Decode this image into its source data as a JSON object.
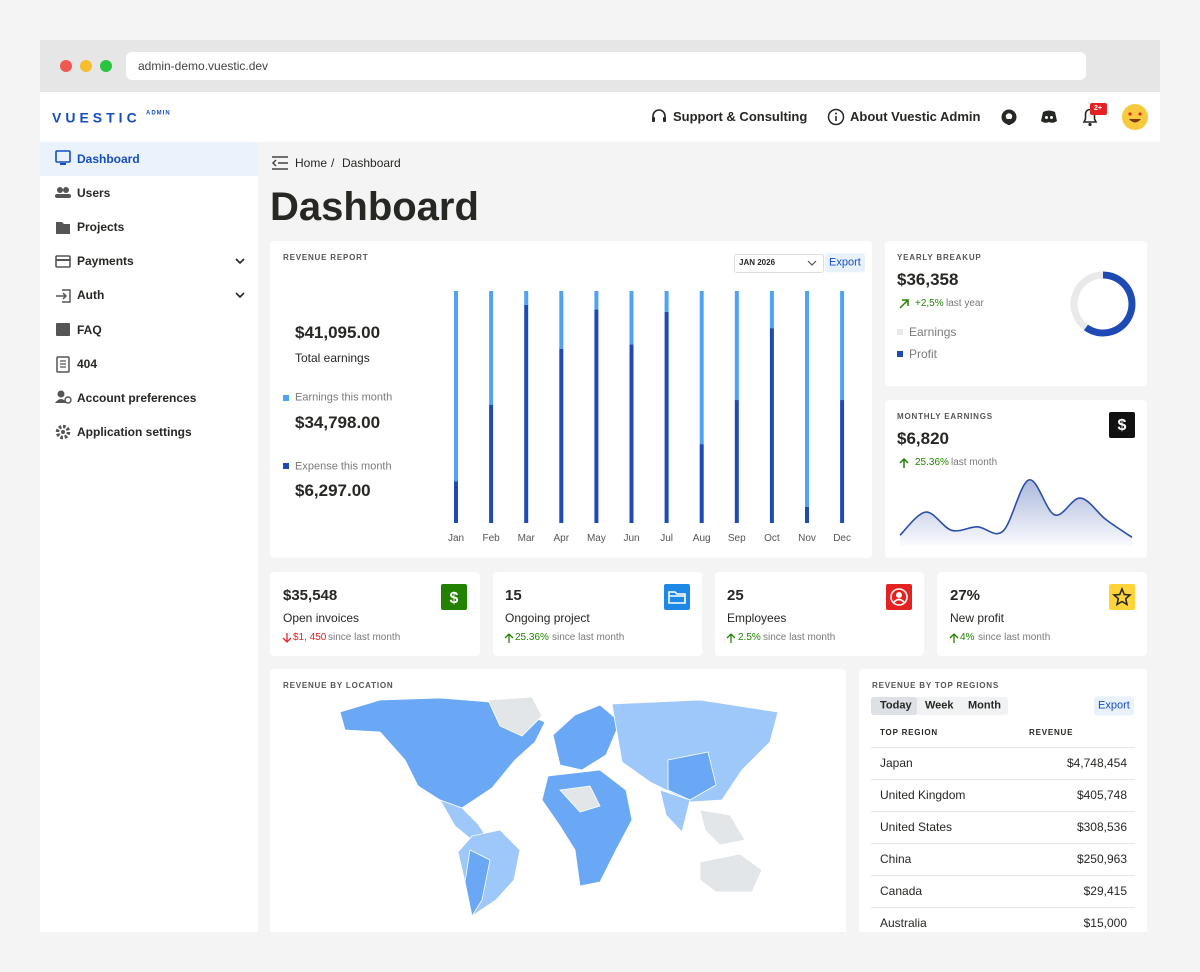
{
  "browser": {
    "url": "admin-demo.vuestic.dev"
  },
  "header": {
    "logo": "VUESTIC",
    "logo_badge": "ADMIN",
    "nav": [
      "Support & Consulting",
      "About Vuestic Admin"
    ],
    "notification_badge": "2+"
  },
  "sidebar": {
    "items": [
      "Dashboard",
      "Users",
      "Projects",
      "Payments",
      "Auth",
      "FAQ",
      "404",
      "Account preferences",
      "Application settings"
    ]
  },
  "breadcrumb": [
    "Home",
    "Dashboard"
  ],
  "page_title": "Dashboard",
  "revenue_report": {
    "title": "REVENUE REPORT",
    "period": "JAN 2026",
    "export": "Export",
    "total": "$41,095.00",
    "total_label": "Total earnings",
    "earnings": "$34,798.00",
    "expense": "$6,297.00"
  },
  "yearly_breakup": {
    "title": "YEARLY BREAKUP",
    "amount": "$36,358",
    "change": "+2,5%",
    "change_label": "last year"
  },
  "monthly_earnings": {
    "title": "MONTHLY EARNINGS",
    "amount": "$6,820",
    "change": "25.36%",
    "change_label": "last month"
  },
  "stats": [
    {
      "value": "$35,548",
      "label": "Open invoices",
      "change": "$1, 450",
      "change_label": "since last month"
    },
    {
      "value": "15",
      "label": "Ongoing project",
      "change": "25.36%",
      "change_label": "since last month"
    },
    {
      "value": "25",
      "label": "Employees",
      "change": "2.5%",
      "change_label": "since last month"
    },
    {
      "value": "27%",
      "label": "New profit",
      "change": "4%",
      "change_label": "since last month"
    }
  ],
  "revenue_by_location": {
    "title": "REVENUE BY LOCATION"
  },
  "top_regions": {
    "title": "REVENUE BY TOP REGIONS",
    "tabs": [
      "Today",
      "Week",
      "Month"
    ],
    "export": "Export",
    "columns": [
      "TOP REGION",
      "REVENUE"
    ],
    "rows": [
      [
        "Japan",
        "$4,748,454"
      ],
      [
        "United Kingdom",
        "$405,748"
      ],
      [
        "United States",
        "$308,536"
      ],
      [
        "China",
        "$250,963"
      ],
      [
        "Canada",
        "$29,415"
      ],
      [
        "Australia",
        "$15,000"
      ]
    ]
  },
  "chart_data": [
    {
      "type": "bar",
      "stacked": true,
      "categories": [
        "Jan",
        "Feb",
        "Mar",
        "Apr",
        "May",
        "Jun",
        "Jul",
        "Aug",
        "Sep",
        "Oct",
        "Nov",
        "Dec"
      ],
      "series": [
        {
          "name": "Expense this month",
          "color": "#1d4ab5",
          "values": [
            18,
            51,
            94,
            75,
            92,
            77,
            91,
            34,
            53,
            84,
            7,
            53
          ]
        },
        {
          "name": "Earnings this month",
          "color": "#4fa3f0",
          "values": [
            82,
            49,
            6,
            25,
            8,
            23,
            9,
            66,
            47,
            16,
            93,
            47
          ]
        }
      ],
      "ylim": [
        0,
        100
      ]
    },
    {
      "type": "pie",
      "donut": true,
      "categories": [
        "Earnings",
        "Profit"
      ],
      "values": [
        40,
        60
      ],
      "colors": [
        "#e9e9e9",
        "#1d4ab5"
      ]
    },
    {
      "type": "area",
      "values": [
        14,
        47,
        21,
        26,
        20,
        93,
        43,
        67,
        36,
        11
      ],
      "color": "#2c4ea6",
      "ylim": [
        0,
        100
      ]
    }
  ]
}
